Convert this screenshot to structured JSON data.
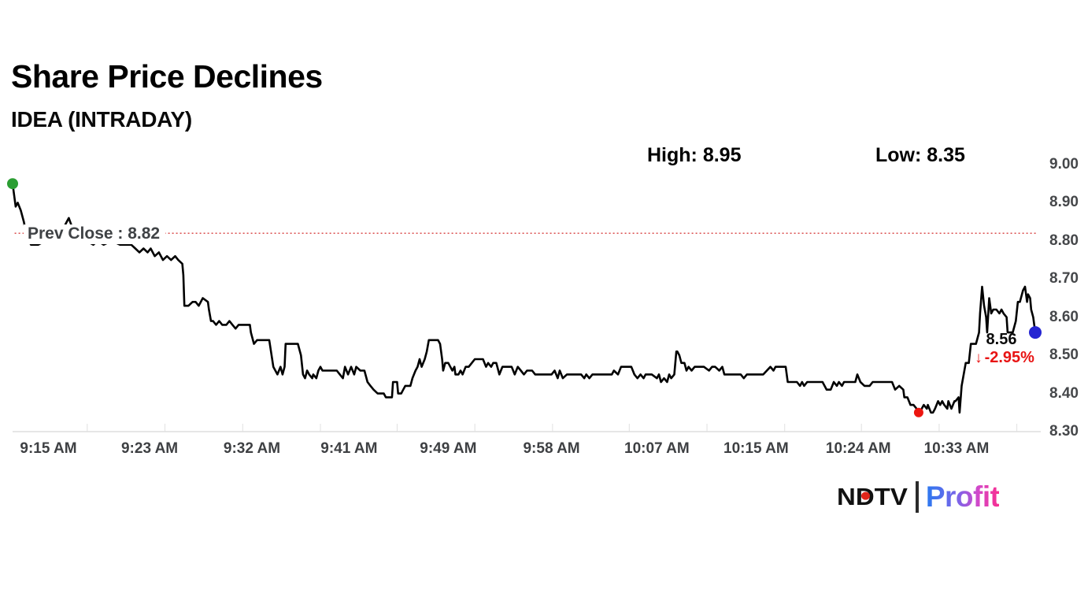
{
  "header": {
    "title": "Share Price Declines",
    "subtitle": "IDEA (INTRADAY)"
  },
  "stats": {
    "high_label": "High: 8.95",
    "low_label": "Low: 8.35"
  },
  "annotations": {
    "prev_close_label": "Prev Close : 8.82",
    "last_price": "8.56",
    "down_arrow": "↓",
    "change_pct": "-2.95%"
  },
  "logo": {
    "ndtv": "NDTV",
    "profit": "Profit",
    "ndtv_dot_color": "#e02419",
    "profit_gradient": [
      "#2a79f0",
      "#f82f90"
    ]
  },
  "chart_data": {
    "type": "line",
    "title": "IDEA intraday share price",
    "high": 8.95,
    "low": 8.35,
    "prev_close": 8.82,
    "last": 8.56,
    "change_pct": -2.95,
    "line_color": "#000000",
    "prev_close_line_color": "#dd5a5a",
    "axis_color": "#cccccc",
    "ylim": [
      8.3,
      9.0
    ],
    "y_ticks": [
      "9.00",
      "8.90",
      "8.80",
      "8.70",
      "8.60",
      "8.50",
      "8.40",
      "8.30"
    ],
    "y_tick_values": [
      9.0,
      8.9,
      8.8,
      8.7,
      8.6,
      8.5,
      8.4,
      8.3
    ],
    "x_ticks": [
      {
        "label": "9:15 AM",
        "pos": 3.5
      },
      {
        "label": "9:23 AM",
        "pos": 13.4
      },
      {
        "label": "9:32 AM",
        "pos": 23.4
      },
      {
        "label": "9:41 AM",
        "pos": 32.9
      },
      {
        "label": "9:49 AM",
        "pos": 42.6
      },
      {
        "label": "9:58 AM",
        "pos": 52.7
      },
      {
        "label": "10:07 AM",
        "pos": 63.0
      },
      {
        "label": "10:15 AM",
        "pos": 72.7
      },
      {
        "label": "10:24 AM",
        "pos": 82.7
      },
      {
        "label": "10:33 AM",
        "pos": 92.3
      }
    ],
    "minor_tick_pos": [
      7.3,
      14.9,
      22.5,
      30.1,
      37.6,
      45.2,
      52.8,
      60.3,
      67.9,
      75.5,
      83.0,
      90.6,
      98.2
    ],
    "markers": [
      {
        "name": "open-marker",
        "pos": 0,
        "price": 8.95,
        "color": "#2b9e33",
        "r": 7
      },
      {
        "name": "low-marker",
        "pos": 88.6,
        "price": 8.35,
        "color": "#ec1610",
        "r": 6
      },
      {
        "name": "last-marker",
        "pos": 100,
        "price": 8.56,
        "color": "#2525d2",
        "r": 8
      }
    ],
    "points": [
      [
        0,
        8.95
      ],
      [
        0.2,
        8.91
      ],
      [
        0.3,
        8.89
      ],
      [
        0.5,
        8.9
      ],
      [
        0.8,
        8.88
      ],
      [
        1.1,
        8.85
      ],
      [
        1.4,
        8.81
      ],
      [
        1.8,
        8.79
      ],
      [
        2.5,
        8.79
      ],
      [
        3.2,
        8.8
      ],
      [
        4.0,
        8.81
      ],
      [
        4.9,
        8.83
      ],
      [
        5.3,
        8.85
      ],
      [
        5.5,
        8.86
      ],
      [
        5.9,
        8.83
      ],
      [
        6.5,
        8.81
      ],
      [
        7.2,
        8.8
      ],
      [
        7.9,
        8.79
      ],
      [
        8.3,
        8.8
      ],
      [
        8.9,
        8.79
      ],
      [
        9.7,
        8.8
      ],
      [
        10.5,
        8.79
      ],
      [
        11.6,
        8.79
      ],
      [
        12.0,
        8.78
      ],
      [
        12.4,
        8.77
      ],
      [
        12.8,
        8.78
      ],
      [
        13.2,
        8.77
      ],
      [
        13.5,
        8.78
      ],
      [
        13.9,
        8.76
      ],
      [
        14.3,
        8.77
      ],
      [
        14.7,
        8.75
      ],
      [
        15.1,
        8.76
      ],
      [
        15.5,
        8.75
      ],
      [
        15.9,
        8.76
      ],
      [
        16.2,
        8.75
      ],
      [
        16.6,
        8.74
      ],
      [
        16.7,
        8.71
      ],
      [
        16.8,
        8.63
      ],
      [
        17.2,
        8.63
      ],
      [
        17.6,
        8.64
      ],
      [
        17.9,
        8.64
      ],
      [
        18.2,
        8.63
      ],
      [
        18.6,
        8.65
      ],
      [
        19.1,
        8.64
      ],
      [
        19.2,
        8.62
      ],
      [
        19.4,
        8.59
      ],
      [
        19.6,
        8.59
      ],
      [
        19.9,
        8.58
      ],
      [
        20.2,
        8.59
      ],
      [
        20.5,
        8.58
      ],
      [
        20.9,
        8.58
      ],
      [
        21.2,
        8.59
      ],
      [
        21.5,
        8.58
      ],
      [
        21.8,
        8.57
      ],
      [
        22.1,
        8.58
      ],
      [
        22.5,
        8.58
      ],
      [
        22.8,
        8.58
      ],
      [
        23.2,
        8.58
      ],
      [
        23.3,
        8.56
      ],
      [
        23.6,
        8.53
      ],
      [
        23.9,
        8.54
      ],
      [
        25.1,
        8.54
      ],
      [
        25.5,
        8.47
      ],
      [
        25.9,
        8.45
      ],
      [
        26.2,
        8.47
      ],
      [
        26.4,
        8.45
      ],
      [
        26.6,
        8.47
      ],
      [
        26.7,
        8.53
      ],
      [
        27.9,
        8.53
      ],
      [
        28.2,
        8.5
      ],
      [
        28.4,
        8.45
      ],
      [
        28.6,
        8.44
      ],
      [
        28.8,
        8.46
      ],
      [
        29.0,
        8.45
      ],
      [
        29.3,
        8.44
      ],
      [
        29.4,
        8.45
      ],
      [
        29.7,
        8.44
      ],
      [
        29.9,
        8.46
      ],
      [
        30.1,
        8.47
      ],
      [
        30.3,
        8.46
      ],
      [
        30.7,
        8.46
      ],
      [
        31.7,
        8.46
      ],
      [
        32.0,
        8.45
      ],
      [
        32.3,
        8.44
      ],
      [
        32.5,
        8.47
      ],
      [
        32.8,
        8.45
      ],
      [
        33.1,
        8.47
      ],
      [
        33.4,
        8.45
      ],
      [
        33.6,
        8.47
      ],
      [
        34.0,
        8.46
      ],
      [
        34.4,
        8.46
      ],
      [
        34.7,
        8.43
      ],
      [
        35.0,
        8.42
      ],
      [
        35.3,
        8.41
      ],
      [
        35.7,
        8.4
      ],
      [
        36.3,
        8.4
      ],
      [
        36.5,
        8.39
      ],
      [
        36.8,
        8.39
      ],
      [
        37.1,
        8.39
      ],
      [
        37.2,
        8.43
      ],
      [
        37.6,
        8.43
      ],
      [
        37.7,
        8.4
      ],
      [
        38.0,
        8.4
      ],
      [
        38.2,
        8.41
      ],
      [
        38.4,
        8.42
      ],
      [
        38.9,
        8.42
      ],
      [
        39.1,
        8.44
      ],
      [
        39.4,
        8.46
      ],
      [
        39.6,
        8.47
      ],
      [
        39.8,
        8.49
      ],
      [
        40.0,
        8.47
      ],
      [
        40.3,
        8.49
      ],
      [
        40.5,
        8.51
      ],
      [
        40.7,
        8.54
      ],
      [
        41.6,
        8.54
      ],
      [
        41.8,
        8.53
      ],
      [
        42.0,
        8.49
      ],
      [
        42.1,
        8.46
      ],
      [
        42.3,
        8.48
      ],
      [
        42.6,
        8.48
      ],
      [
        42.8,
        8.47
      ],
      [
        43.0,
        8.46
      ],
      [
        43.2,
        8.47
      ],
      [
        43.3,
        8.45
      ],
      [
        43.6,
        8.45
      ],
      [
        43.8,
        8.46
      ],
      [
        44.0,
        8.45
      ],
      [
        44.3,
        8.47
      ],
      [
        44.6,
        8.47
      ],
      [
        44.9,
        8.48
      ],
      [
        45.2,
        8.49
      ],
      [
        46.0,
        8.49
      ],
      [
        46.3,
        8.47
      ],
      [
        46.5,
        8.48
      ],
      [
        46.8,
        8.47
      ],
      [
        47.0,
        8.48
      ],
      [
        47.3,
        8.48
      ],
      [
        47.6,
        8.45
      ],
      [
        47.9,
        8.47
      ],
      [
        48.8,
        8.47
      ],
      [
        49.1,
        8.45
      ],
      [
        49.4,
        8.47
      ],
      [
        49.7,
        8.46
      ],
      [
        50.0,
        8.45
      ],
      [
        50.3,
        8.46
      ],
      [
        50.8,
        8.46
      ],
      [
        51.1,
        8.45
      ],
      [
        52.3,
        8.45
      ],
      [
        52.7,
        8.45
      ],
      [
        53.0,
        8.46
      ],
      [
        53.3,
        8.44
      ],
      [
        53.5,
        8.46
      ],
      [
        53.8,
        8.44
      ],
      [
        54.2,
        8.45
      ],
      [
        55.0,
        8.45
      ],
      [
        55.6,
        8.45
      ],
      [
        55.9,
        8.44
      ],
      [
        56.1,
        8.45
      ],
      [
        56.4,
        8.44
      ],
      [
        56.7,
        8.45
      ],
      [
        57.4,
        8.45
      ],
      [
        58.6,
        8.45
      ],
      [
        58.8,
        8.46
      ],
      [
        59.2,
        8.45
      ],
      [
        59.5,
        8.47
      ],
      [
        59.8,
        8.47
      ],
      [
        60.5,
        8.47
      ],
      [
        60.8,
        8.45
      ],
      [
        61.1,
        8.44
      ],
      [
        61.4,
        8.45
      ],
      [
        61.7,
        8.44
      ],
      [
        61.9,
        8.45
      ],
      [
        62.5,
        8.45
      ],
      [
        63.0,
        8.44
      ],
      [
        63.2,
        8.45
      ],
      [
        63.4,
        8.43
      ],
      [
        63.7,
        8.44
      ],
      [
        64.0,
        8.43
      ],
      [
        64.2,
        8.45
      ],
      [
        64.4,
        8.44
      ],
      [
        64.7,
        8.45
      ],
      [
        64.9,
        8.51
      ],
      [
        65.0,
        8.51
      ],
      [
        65.2,
        8.5
      ],
      [
        65.4,
        8.48
      ],
      [
        65.7,
        8.48
      ],
      [
        65.9,
        8.46
      ],
      [
        66.1,
        8.47
      ],
      [
        66.4,
        8.46
      ],
      [
        66.7,
        8.47
      ],
      [
        67.6,
        8.47
      ],
      [
        68.1,
        8.46
      ],
      [
        68.4,
        8.47
      ],
      [
        68.7,
        8.47
      ],
      [
        69.1,
        8.46
      ],
      [
        69.4,
        8.47
      ],
      [
        69.6,
        8.45
      ],
      [
        70.4,
        8.45
      ],
      [
        71.2,
        8.45
      ],
      [
        71.5,
        8.44
      ],
      [
        71.8,
        8.45
      ],
      [
        72.5,
        8.45
      ],
      [
        73.4,
        8.45
      ],
      [
        74.1,
        8.47
      ],
      [
        74.4,
        8.46
      ],
      [
        74.6,
        8.47
      ],
      [
        75.1,
        8.47
      ],
      [
        75.6,
        8.47
      ],
      [
        75.8,
        8.43
      ],
      [
        76.2,
        8.43
      ],
      [
        76.7,
        8.43
      ],
      [
        77.0,
        8.42
      ],
      [
        77.2,
        8.43
      ],
      [
        77.4,
        8.42
      ],
      [
        77.7,
        8.43
      ],
      [
        78.4,
        8.43
      ],
      [
        79.2,
        8.43
      ],
      [
        79.6,
        8.41
      ],
      [
        80.0,
        8.41
      ],
      [
        80.3,
        8.43
      ],
      [
        80.6,
        8.42
      ],
      [
        80.8,
        8.43
      ],
      [
        81.1,
        8.42
      ],
      [
        81.3,
        8.43
      ],
      [
        81.9,
        8.43
      ],
      [
        82.4,
        8.43
      ],
      [
        82.6,
        8.45
      ],
      [
        82.9,
        8.43
      ],
      [
        83.3,
        8.42
      ],
      [
        83.8,
        8.42
      ],
      [
        84.1,
        8.43
      ],
      [
        84.5,
        8.43
      ],
      [
        85.4,
        8.43
      ],
      [
        86.0,
        8.43
      ],
      [
        86.3,
        8.41
      ],
      [
        86.7,
        8.42
      ],
      [
        87.1,
        8.41
      ],
      [
        87.2,
        8.39
      ],
      [
        87.5,
        8.39
      ],
      [
        87.8,
        8.37
      ],
      [
        88.1,
        8.37
      ],
      [
        88.4,
        8.36
      ],
      [
        88.6,
        8.35
      ],
      [
        88.9,
        8.36
      ],
      [
        89.1,
        8.37
      ],
      [
        89.4,
        8.36
      ],
      [
        89.5,
        8.37
      ],
      [
        89.8,
        8.35
      ],
      [
        90.0,
        8.35
      ],
      [
        90.2,
        8.36
      ],
      [
        90.5,
        8.38
      ],
      [
        90.7,
        8.37
      ],
      [
        90.9,
        8.38
      ],
      [
        91.1,
        8.37
      ],
      [
        91.4,
        8.36
      ],
      [
        91.5,
        8.38
      ],
      [
        91.8,
        8.36
      ],
      [
        92.1,
        8.38
      ],
      [
        92.2,
        8.38
      ],
      [
        92.5,
        8.39
      ],
      [
        92.6,
        8.35
      ],
      [
        92.8,
        8.42
      ],
      [
        93.0,
        8.45
      ],
      [
        93.2,
        8.48
      ],
      [
        93.5,
        8.48
      ],
      [
        93.7,
        8.53
      ],
      [
        94.2,
        8.53
      ],
      [
        94.5,
        8.56
      ],
      [
        94.6,
        8.61
      ],
      [
        94.8,
        8.68
      ],
      [
        95.0,
        8.63
      ],
      [
        95.2,
        8.6
      ],
      [
        95.3,
        8.56
      ],
      [
        95.5,
        8.65
      ],
      [
        95.7,
        8.61
      ],
      [
        95.9,
        8.62
      ],
      [
        96.2,
        8.62
      ],
      [
        96.5,
        8.61
      ],
      [
        96.7,
        8.62
      ],
      [
        96.9,
        8.61
      ],
      [
        97.2,
        8.6
      ],
      [
        97.3,
        8.56
      ],
      [
        97.8,
        8.56
      ],
      [
        98.1,
        8.59
      ],
      [
        98.3,
        8.64
      ],
      [
        98.5,
        8.64
      ],
      [
        98.8,
        8.67
      ],
      [
        99.0,
        8.68
      ],
      [
        99.2,
        8.64
      ],
      [
        99.3,
        8.66
      ],
      [
        99.5,
        8.65
      ],
      [
        99.6,
        8.62
      ],
      [
        99.8,
        8.6
      ],
      [
        100,
        8.56
      ]
    ]
  }
}
